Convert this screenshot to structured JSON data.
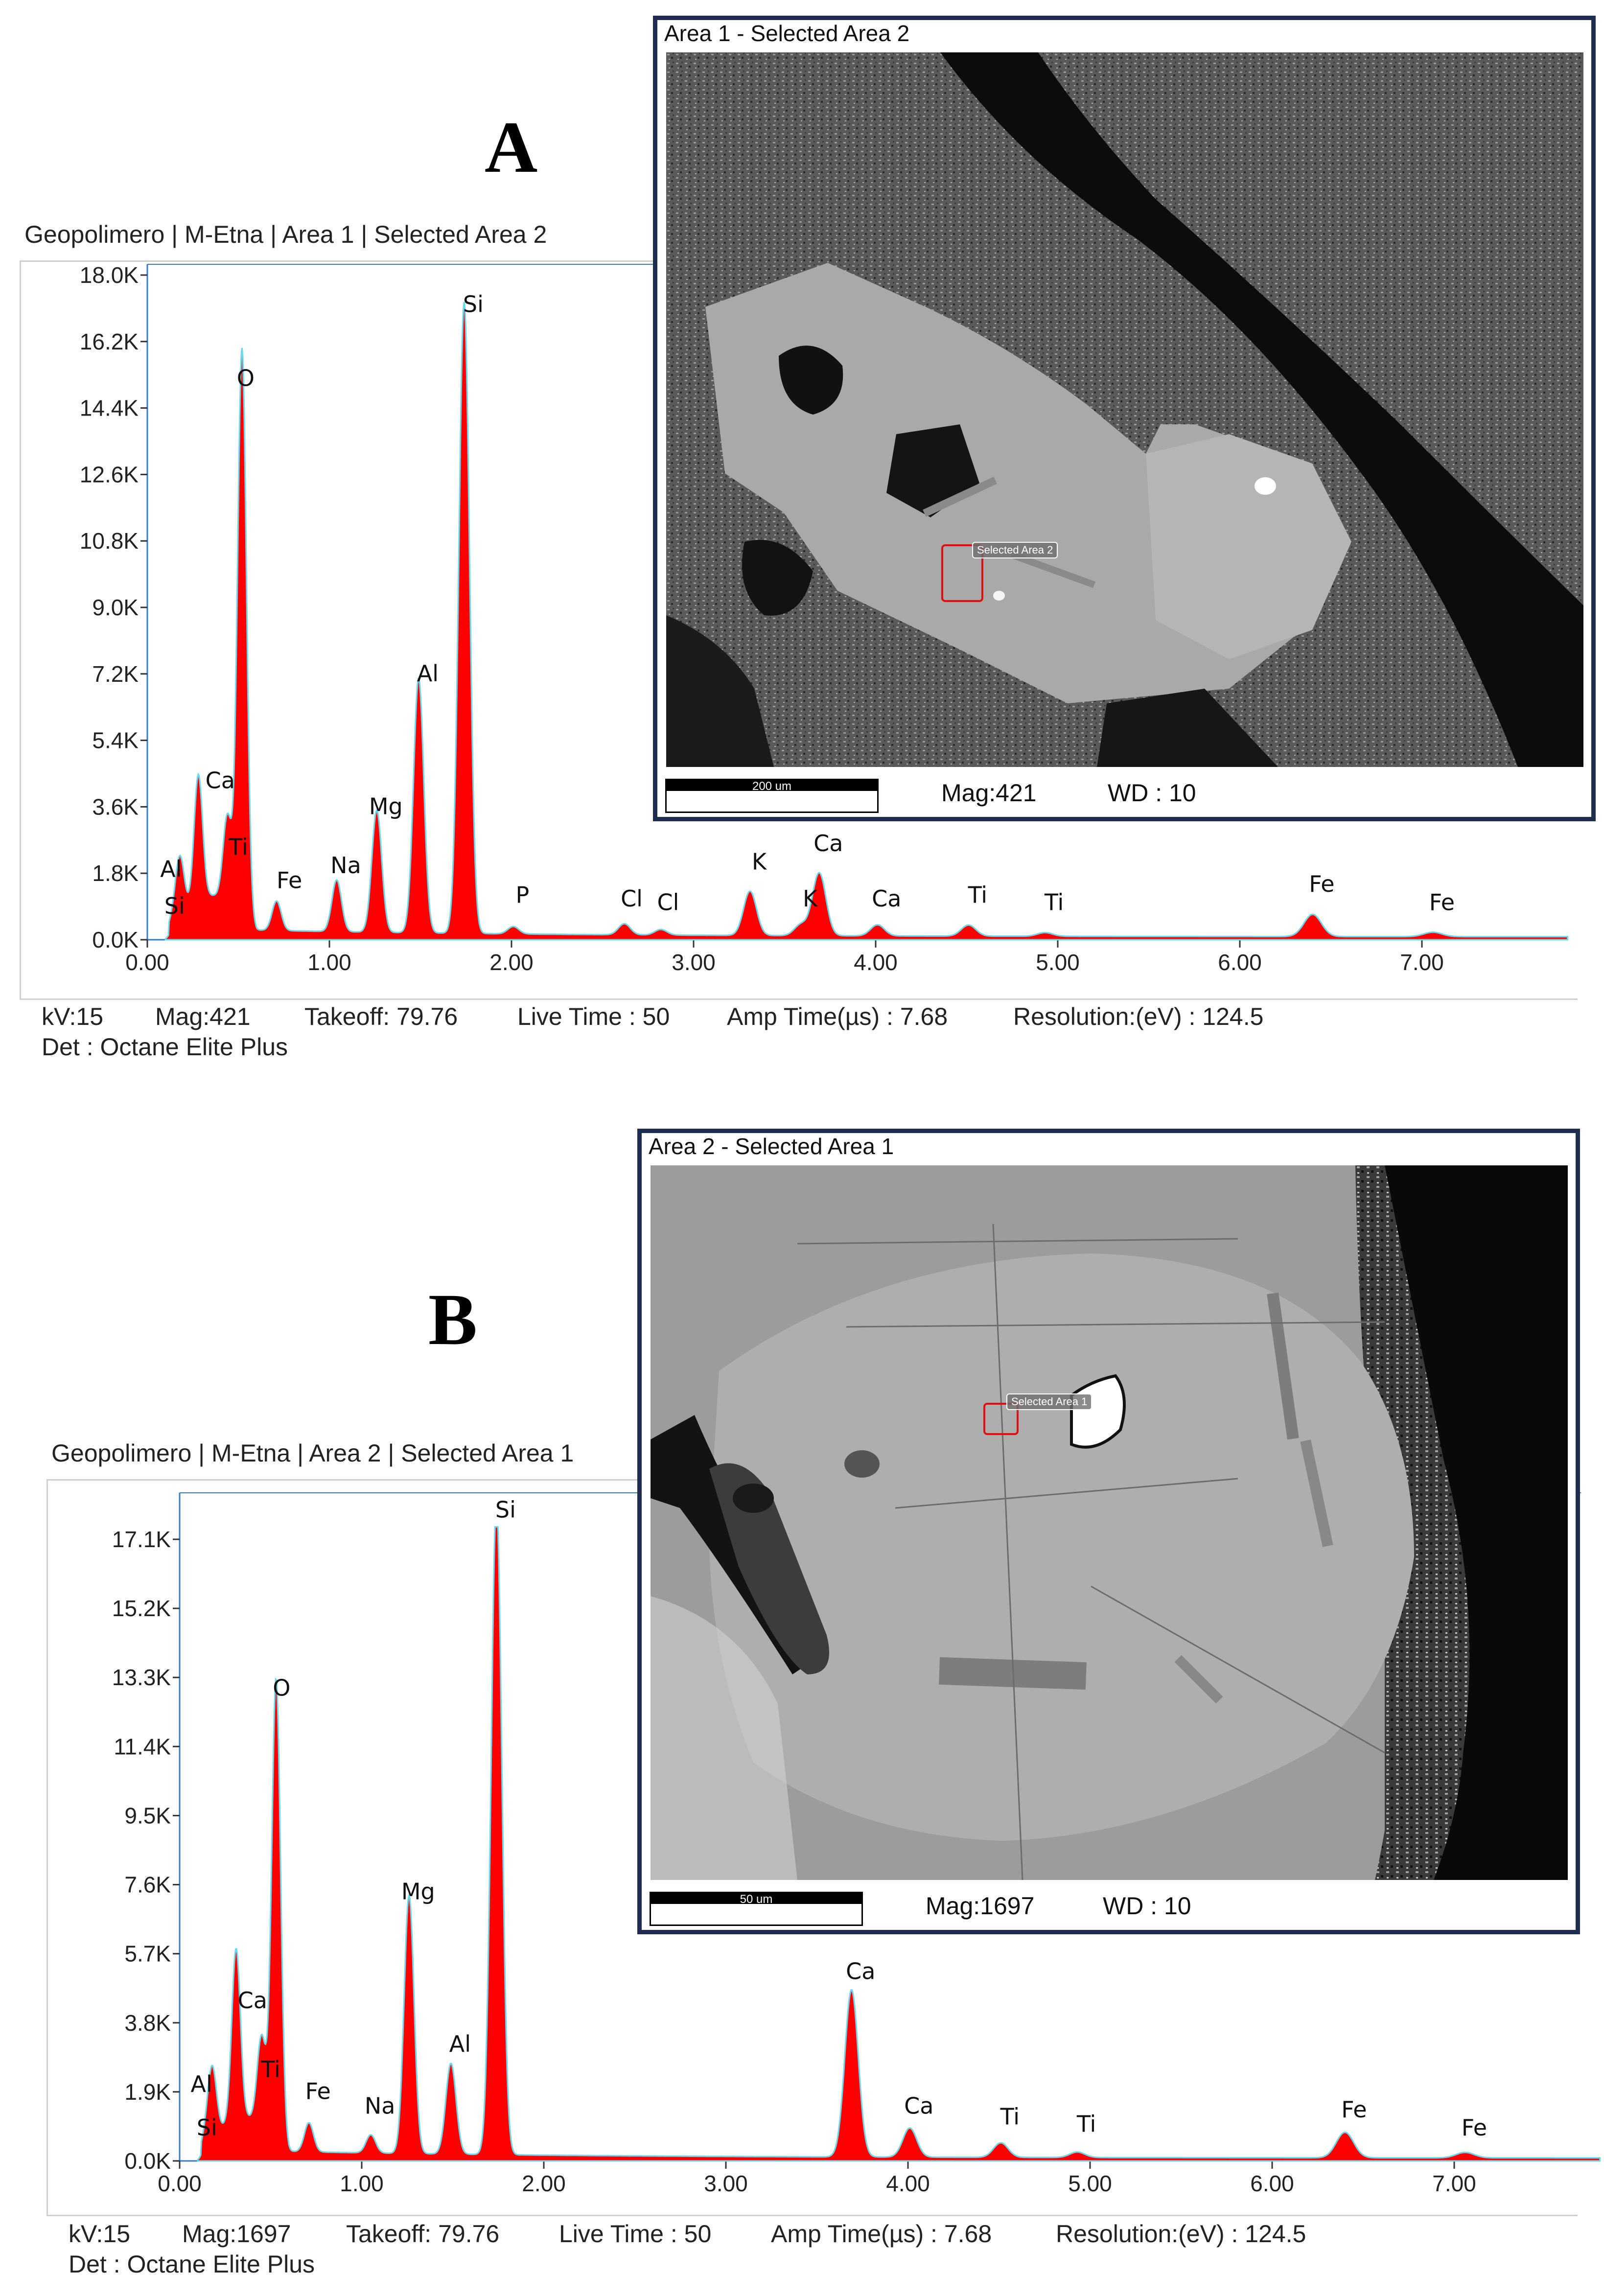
{
  "colors": {
    "fill": "#ff0000",
    "outline": "#66d9ef",
    "frame": "#1f2e4f"
  },
  "panels": {
    "a": {
      "letter": "A",
      "title": "Geopolimero | M-Etna | Area 1 | Selected Area 2",
      "stats": {
        "kv": "kV:15",
        "mag": "Mag:421",
        "takeoff": "Takeoff: 79.76",
        "live": "Live Time : 50",
        "amp": "Amp Time(µs) : 7.68",
        "res": "Resolution:(eV) : 124.5",
        "det": "Det : Octane Elite Plus"
      },
      "sem": {
        "title": "Area 1 - Selected Area 2",
        "scale": "200 um",
        "mag": "Mag:421",
        "wd": "WD : 10",
        "tag": "Selected Area 2"
      }
    },
    "b": {
      "letter": "B",
      "title": "Geopolimero | M-Etna | Area 2 | Selected Area 1",
      "stats": {
        "kv": "kV:15",
        "mag": "Mag:1697",
        "takeoff": "Takeoff: 79.76",
        "live": "Live Time : 50",
        "amp": "Amp Time(µs) : 7.68",
        "res": "Resolution:(eV) : 124.5",
        "det": "Det : Octane Elite Plus"
      },
      "sem": {
        "title": "Area 2 - Selected Area 1",
        "scale": "50 um",
        "mag": "Mag:1697",
        "wd": "WD : 10",
        "tag": "Selected Area 1"
      }
    }
  },
  "chart_data": [
    {
      "type": "area",
      "x_ticks": [
        "0.00",
        "1.00",
        "2.00",
        "3.00",
        "4.00",
        "5.00",
        "6.00",
        "7.00"
      ],
      "y_ticks": [
        "0.0K",
        "1.8K",
        "3.6K",
        "5.4K",
        "7.2K",
        "9.0K",
        "10.8K",
        "12.6K",
        "14.4K",
        "16.2K",
        "18.0K"
      ],
      "xlim": [
        0,
        7.8
      ],
      "ylim": [
        0,
        18000
      ],
      "peaks": [
        {
          "label": "Si",
          "x": 0.15,
          "y": 300,
          "lx": 0.15,
          "ly": 700
        },
        {
          "label": "Al",
          "x": 0.18,
          "y": 1500,
          "lx": 0.13,
          "ly": 1700
        },
        {
          "label": "Ca",
          "x": 0.28,
          "y": 3400,
          "lx": 0.4,
          "ly": 4100
        },
        {
          "label": "Ti",
          "x": 0.44,
          "y": 2300,
          "lx": 0.5,
          "ly": 2300
        },
        {
          "label": "O",
          "x": 0.52,
          "y": 15300,
          "lx": 0.54,
          "ly": 15000
        },
        {
          "label": "Fe",
          "x": 0.71,
          "y": 800,
          "lx": 0.78,
          "ly": 1400
        },
        {
          "label": "Na",
          "x": 1.04,
          "y": 1400,
          "lx": 1.09,
          "ly": 1800
        },
        {
          "label": "Mg",
          "x": 1.26,
          "y": 3300,
          "lx": 1.31,
          "ly": 3400
        },
        {
          "label": "Al",
          "x": 1.49,
          "y": 6900,
          "lx": 1.54,
          "ly": 7000
        },
        {
          "label": "Si",
          "x": 1.74,
          "y": 17100,
          "lx": 1.79,
          "ly": 17000
        },
        {
          "label": "P",
          "x": 2.01,
          "y": 200,
          "lx": 2.06,
          "ly": 1000
        },
        {
          "label": "Cl",
          "x": 2.62,
          "y": 300,
          "lx": 2.66,
          "ly": 900
        },
        {
          "label": "Cl",
          "x": 2.82,
          "y": 150,
          "lx": 2.86,
          "ly": 800
        },
        {
          "label": "K",
          "x": 3.31,
          "y": 1200,
          "lx": 3.36,
          "ly": 1900
        },
        {
          "label": "K",
          "x": 3.59,
          "y": 300,
          "lx": 3.64,
          "ly": 900
        },
        {
          "label": "Ca",
          "x": 3.69,
          "y": 1700,
          "lx": 3.74,
          "ly": 2400
        },
        {
          "label": "Ca",
          "x": 4.01,
          "y": 300,
          "lx": 4.06,
          "ly": 900
        },
        {
          "label": "Ti",
          "x": 4.51,
          "y": 300,
          "lx": 4.56,
          "ly": 1000
        },
        {
          "label": "Ti",
          "x": 4.93,
          "y": 100,
          "lx": 4.98,
          "ly": 800
        },
        {
          "label": "Fe",
          "x": 6.4,
          "y": 600,
          "lx": 6.45,
          "ly": 1300
        },
        {
          "label": "Fe",
          "x": 7.06,
          "y": 120,
          "lx": 7.11,
          "ly": 800
        }
      ]
    },
    {
      "type": "area",
      "x_ticks": [
        "0.00",
        "1.00",
        "2.00",
        "3.00",
        "4.00",
        "5.00",
        "6.00",
        "7.00"
      ],
      "y_ticks": [
        "0.0K",
        "1.9K",
        "3.8K",
        "5.7K",
        "7.6K",
        "9.5K",
        "11.4K",
        "13.3K",
        "15.2K",
        "17.1K"
      ],
      "xlim": [
        0,
        7.8
      ],
      "ylim": [
        0,
        19000
      ],
      "peaks": [
        {
          "label": "Si",
          "x": 0.15,
          "y": 400,
          "lx": 0.15,
          "ly": 700
        },
        {
          "label": "Al",
          "x": 0.18,
          "y": 1800,
          "lx": 0.12,
          "ly": 1900
        },
        {
          "label": "Ca",
          "x": 0.31,
          "y": 4700,
          "lx": 0.4,
          "ly": 4200
        },
        {
          "label": "Ti",
          "x": 0.45,
          "y": 2400,
          "lx": 0.5,
          "ly": 2300
        },
        {
          "label": "O",
          "x": 0.53,
          "y": 12600,
          "lx": 0.56,
          "ly": 12800
        },
        {
          "label": "Fe",
          "x": 0.71,
          "y": 800,
          "lx": 0.76,
          "ly": 1700
        },
        {
          "label": "Na",
          "x": 1.05,
          "y": 500,
          "lx": 1.1,
          "ly": 1300
        },
        {
          "label": "Mg",
          "x": 1.26,
          "y": 7100,
          "lx": 1.31,
          "ly": 7200
        },
        {
          "label": "Al",
          "x": 1.49,
          "y": 2500,
          "lx": 1.54,
          "ly": 3000
        },
        {
          "label": "Si",
          "x": 1.74,
          "y": 18000,
          "lx": 1.79,
          "ly": 17700
        },
        {
          "label": "Ca",
          "x": 3.69,
          "y": 4600,
          "lx": 3.74,
          "ly": 5000
        },
        {
          "label": "Ca",
          "x": 4.01,
          "y": 800,
          "lx": 4.06,
          "ly": 1300
        },
        {
          "label": "Ti",
          "x": 4.51,
          "y": 400,
          "lx": 4.56,
          "ly": 1000
        },
        {
          "label": "Ti",
          "x": 4.93,
          "y": 150,
          "lx": 4.98,
          "ly": 800
        },
        {
          "label": "Fe",
          "x": 6.4,
          "y": 700,
          "lx": 6.45,
          "ly": 1200
        },
        {
          "label": "Fe",
          "x": 7.06,
          "y": 150,
          "lx": 7.11,
          "ly": 700
        }
      ]
    }
  ]
}
